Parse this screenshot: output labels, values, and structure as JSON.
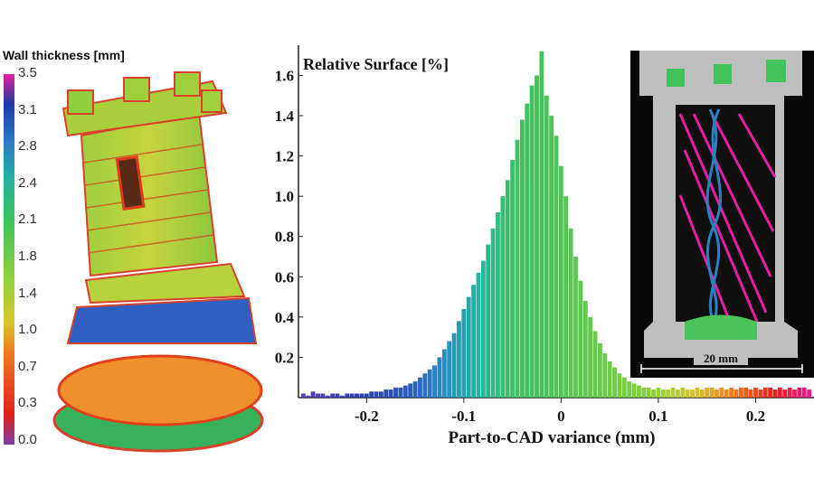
{
  "colorbar": {
    "title": "Wall thickness [mm]",
    "ticks": [
      "3.5",
      "3.1",
      "2.8",
      "2.4",
      "2.1",
      "1.8",
      "1.4",
      "1.0",
      "0.7",
      "0.3",
      "0.0"
    ]
  },
  "inset": {
    "scale_label": "20 mm"
  },
  "chart_data": {
    "type": "bar",
    "title": "",
    "ylabel": "Relative Surface [%]",
    "xlabel": "Part-to-CAD variance (mm)",
    "xlim": [
      -0.27,
      0.26
    ],
    "ylim": [
      0,
      1.75
    ],
    "xticks": [
      -0.2,
      -0.1,
      0,
      0.1,
      0.2
    ],
    "xtick_labels": [
      "-0.2",
      "-0.1",
      "0",
      "0.1",
      "0.2"
    ],
    "yticks": [
      0.2,
      0.4,
      0.6,
      0.8,
      1.0,
      1.2,
      1.4,
      1.6
    ],
    "ytick_labels": [
      "0.2",
      "0.4",
      "0.6",
      "0.8",
      "1.0",
      "1.2",
      "1.4",
      "1.6"
    ],
    "x": [
      -0.265,
      -0.26,
      -0.255,
      -0.25,
      -0.245,
      -0.24,
      -0.235,
      -0.23,
      -0.225,
      -0.22,
      -0.215,
      -0.21,
      -0.205,
      -0.2,
      -0.195,
      -0.19,
      -0.185,
      -0.18,
      -0.175,
      -0.17,
      -0.165,
      -0.16,
      -0.155,
      -0.15,
      -0.145,
      -0.14,
      -0.135,
      -0.13,
      -0.125,
      -0.12,
      -0.115,
      -0.11,
      -0.105,
      -0.1,
      -0.095,
      -0.09,
      -0.085,
      -0.08,
      -0.075,
      -0.07,
      -0.065,
      -0.06,
      -0.055,
      -0.05,
      -0.045,
      -0.04,
      -0.035,
      -0.03,
      -0.025,
      -0.02,
      -0.015,
      -0.01,
      -0.005,
      0,
      0.005,
      0.01,
      0.015,
      0.02,
      0.025,
      0.03,
      0.035,
      0.04,
      0.045,
      0.05,
      0.055,
      0.06,
      0.065,
      0.07,
      0.075,
      0.08,
      0.085,
      0.09,
      0.095,
      0.1,
      0.105,
      0.11,
      0.115,
      0.12,
      0.125,
      0.13,
      0.135,
      0.14,
      0.145,
      0.15,
      0.155,
      0.16,
      0.165,
      0.17,
      0.175,
      0.18,
      0.185,
      0.19,
      0.195,
      0.2,
      0.205,
      0.21,
      0.215,
      0.22,
      0.225,
      0.23,
      0.235,
      0.24,
      0.245,
      0.25,
      0.255
    ],
    "values": [
      0.02,
      0.01,
      0.03,
      0.02,
      0.02,
      0.01,
      0.02,
      0.02,
      0.01,
      0.02,
      0.02,
      0.02,
      0.02,
      0.02,
      0.03,
      0.03,
      0.03,
      0.04,
      0.04,
      0.05,
      0.05,
      0.06,
      0.07,
      0.08,
      0.1,
      0.12,
      0.14,
      0.16,
      0.2,
      0.24,
      0.28,
      0.32,
      0.38,
      0.44,
      0.5,
      0.56,
      0.62,
      0.68,
      0.76,
      0.84,
      0.92,
      1.0,
      1.08,
      1.18,
      1.28,
      1.38,
      1.46,
      1.55,
      1.6,
      1.72,
      1.5,
      1.4,
      1.3,
      1.15,
      1.0,
      0.84,
      0.7,
      0.58,
      0.48,
      0.4,
      0.33,
      0.27,
      0.22,
      0.18,
      0.15,
      0.12,
      0.1,
      0.08,
      0.07,
      0.06,
      0.05,
      0.05,
      0.04,
      0.05,
      0.04,
      0.04,
      0.05,
      0.04,
      0.05,
      0.04,
      0.04,
      0.05,
      0.04,
      0.05,
      0.05,
      0.04,
      0.05,
      0.04,
      0.05,
      0.04,
      0.05,
      0.05,
      0.04,
      0.05,
      0.04,
      0.05,
      0.05,
      0.04,
      0.05,
      0.04,
      0.05,
      0.04,
      0.05,
      0.05,
      0.04
    ],
    "grid": false,
    "legend": "none",
    "colormap": [
      "#8a3fb0",
      "#2a3db0",
      "#2a80c9",
      "#28b3a0",
      "#46c25a",
      "#8fd13a",
      "#d6c62c",
      "#f07a1c",
      "#e0201c",
      "#e51f9c"
    ]
  }
}
